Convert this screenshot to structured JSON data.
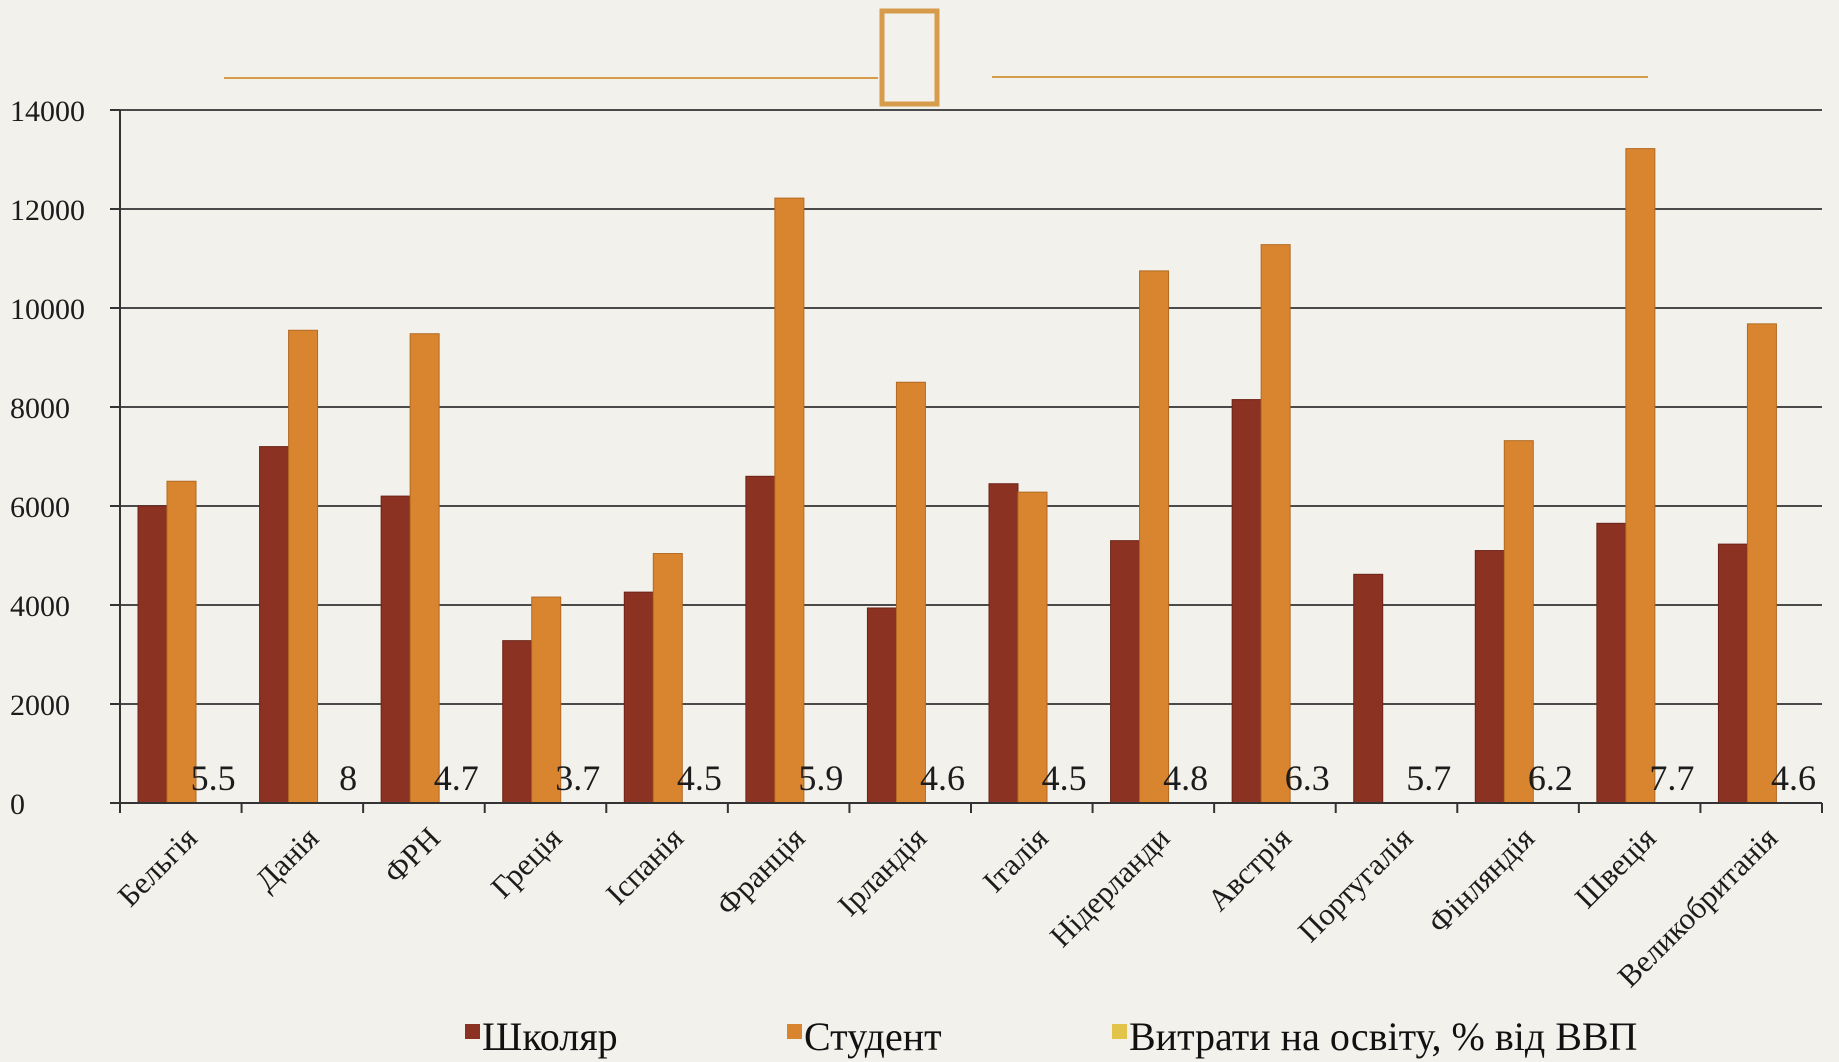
{
  "chart_data": {
    "type": "bar",
    "categories": [
      "Бельгія",
      "Данія",
      "ФРН",
      "Греція",
      "Іспанія",
      "Франція",
      "Ірландія",
      "Італія",
      "Нідерланди",
      "Австрія",
      "Португалія",
      "Фінляндія",
      "Швеція",
      "Великобританія"
    ],
    "series": [
      {
        "name": "Школяр",
        "color": "#8b3222",
        "values": [
          6000,
          7200,
          6200,
          3280,
          4260,
          6600,
          3940,
          6450,
          5300,
          8150,
          4620,
          5100,
          5650,
          5230
        ]
      },
      {
        "name": "Студент",
        "color": "#d9852f",
        "values": [
          6500,
          9550,
          9480,
          4160,
          5040,
          12220,
          8500,
          6280,
          10750,
          11280,
          null,
          7320,
          13220,
          9680
        ]
      },
      {
        "name": "Витрати на освіту, % від ВВП",
        "color": "#e3c44a",
        "values": [
          5.5,
          8,
          4.7,
          3.7,
          4.5,
          5.9,
          4.6,
          4.5,
          4.8,
          6.3,
          5.7,
          6.2,
          7.7,
          4.6
        ]
      }
    ],
    "data_labels": [
      "5.5",
      "8",
      "4.7",
      "3.7",
      "4.5",
      "5.9",
      "4.6",
      "4.5",
      "4.8",
      "6.3",
      "5.7",
      "6.2",
      "7.7",
      "4.6"
    ],
    "ylim": [
      0,
      14000
    ],
    "yticks": [
      "0",
      "2000",
      "4000",
      "6000",
      "8000",
      "10000",
      "12000",
      "14000"
    ],
    "ytick_values": [
      0,
      2000,
      4000,
      6000,
      8000,
      10000,
      12000,
      14000
    ],
    "grid": true,
    "legend_position": "bottom",
    "title": "",
    "xlabel": "",
    "ylabel": ""
  },
  "decoration": {
    "accent_color": "#d79b4c",
    "header_icon": "missing-glyph-icon"
  }
}
